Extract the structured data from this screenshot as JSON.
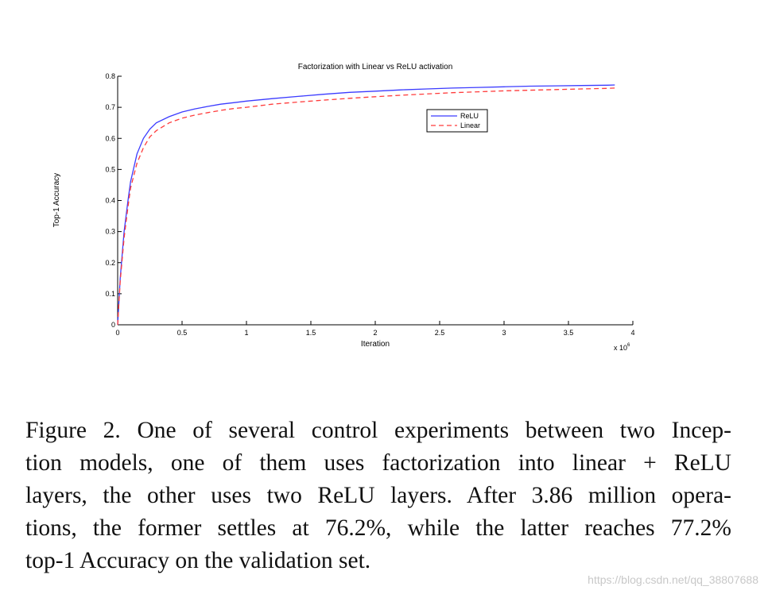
{
  "chart_data": {
    "type": "line",
    "title": "Factorization with Linear vs ReLU activation",
    "xlabel": "Iteration",
    "ylabel": "Top-1 Accuracy",
    "x_multiplier_label": "x 10",
    "x_multiplier_exponent": "6",
    "xlim": [
      0,
      4
    ],
    "ylim": [
      0,
      0.8
    ],
    "xticks": [
      "0",
      "0.5",
      "1",
      "1.5",
      "2",
      "2.5",
      "3",
      "3.5",
      "4"
    ],
    "yticks": [
      "0",
      "0.1",
      "0.2",
      "0.3",
      "0.4",
      "0.5",
      "0.6",
      "0.7",
      "0.8"
    ],
    "grid": false,
    "legend_position": "top-right",
    "series": [
      {
        "name": "ReLU",
        "color": "#3b3bff",
        "style": "solid",
        "x": [
          0,
          0.02,
          0.05,
          0.08,
          0.1,
          0.15,
          0.2,
          0.25,
          0.3,
          0.4,
          0.5,
          0.6,
          0.7,
          0.8,
          0.9,
          1.0,
          1.2,
          1.4,
          1.6,
          1.8,
          2.0,
          2.2,
          2.4,
          2.6,
          2.8,
          3.0,
          3.2,
          3.4,
          3.6,
          3.8,
          3.86
        ],
        "y": [
          0,
          0.15,
          0.3,
          0.4,
          0.46,
          0.55,
          0.6,
          0.63,
          0.65,
          0.67,
          0.685,
          0.695,
          0.703,
          0.71,
          0.715,
          0.72,
          0.728,
          0.735,
          0.742,
          0.748,
          0.752,
          0.756,
          0.759,
          0.762,
          0.764,
          0.766,
          0.768,
          0.769,
          0.77,
          0.771,
          0.772
        ]
      },
      {
        "name": "Linear",
        "color": "#ff3b3b",
        "style": "dashed",
        "x": [
          0,
          0.02,
          0.05,
          0.08,
          0.1,
          0.15,
          0.2,
          0.25,
          0.3,
          0.4,
          0.5,
          0.6,
          0.7,
          0.8,
          0.9,
          1.0,
          1.2,
          1.4,
          1.6,
          1.8,
          2.0,
          2.2,
          2.4,
          2.6,
          2.8,
          3.0,
          3.2,
          3.4,
          3.6,
          3.8,
          3.86
        ],
        "y": [
          0,
          0.14,
          0.28,
          0.38,
          0.44,
          0.52,
          0.57,
          0.605,
          0.625,
          0.65,
          0.665,
          0.675,
          0.683,
          0.69,
          0.696,
          0.7,
          0.71,
          0.717,
          0.723,
          0.729,
          0.734,
          0.739,
          0.743,
          0.747,
          0.75,
          0.753,
          0.755,
          0.757,
          0.759,
          0.761,
          0.762
        ]
      }
    ]
  },
  "caption": {
    "lines": [
      "Figure 2. One of several control experiments between two Incep-",
      "tion models, one of them uses factorization into linear + ReLU",
      "layers, the other uses two ReLU layers. After 3.86 million opera-",
      "tions, the former settles at 76.2%, while the latter reaches 77.2%",
      "top-1 Accuracy on the validation set."
    ]
  },
  "watermark": "https://blog.csdn.net/qq_38807688"
}
